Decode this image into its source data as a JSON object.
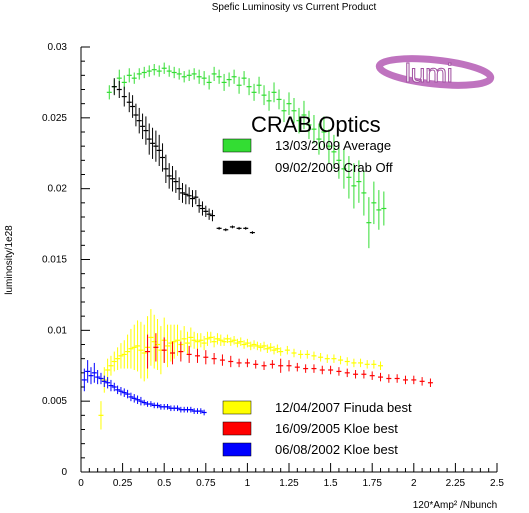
{
  "chart_data": {
    "type": "scatter",
    "title": "Spefic Luminosity vs Current Product",
    "xlabel": "120*Amp² /Nbunch",
    "ylabel": "luminosity/1e28",
    "xlim": [
      0,
      2.5
    ],
    "ylim": [
      0,
      0.03
    ],
    "x_ticks": [
      "0",
      "0.25",
      "0.5",
      "0.75",
      "1",
      "1.25",
      "1.5",
      "1.75",
      "2",
      "2.25",
      "2.5"
    ],
    "y_ticks": [
      "0",
      "0.005",
      "0.01",
      "0.015",
      "0.02",
      "0.025",
      "0.03"
    ],
    "annotation": "CRAB Optics",
    "logo_text": "lumi",
    "grid": false,
    "legend_top": [
      {
        "label": "13/03/2009 Average",
        "color": "#33dd33"
      },
      {
        "label": "09/02/2009 Crab Off",
        "color": "#000000"
      }
    ],
    "legend_bottom": [
      {
        "label": "12/04/2007 Finuda best",
        "color": "#ffff00"
      },
      {
        "label": "16/09/2005 Kloe best",
        "color": "#ff0000"
      },
      {
        "label": "06/08/2002 Kloe best",
        "color": "#0000ff"
      }
    ],
    "series": [
      {
        "name": "13/03/2009 Average",
        "color": "#33dd33",
        "x": [
          0.17,
          0.2,
          0.23,
          0.26,
          0.29,
          0.32,
          0.35,
          0.38,
          0.41,
          0.44,
          0.47,
          0.5,
          0.53,
          0.56,
          0.59,
          0.62,
          0.65,
          0.68,
          0.71,
          0.74,
          0.77,
          0.8,
          0.83,
          0.86,
          0.89,
          0.92,
          0.95,
          0.98,
          1.01,
          1.04,
          1.07,
          1.1,
          1.13,
          1.16,
          1.19,
          1.22,
          1.25,
          1.28,
          1.31,
          1.34,
          1.37,
          1.4,
          1.43,
          1.46,
          1.49,
          1.52,
          1.55,
          1.58,
          1.61,
          1.64,
          1.67,
          1.7,
          1.73,
          1.76,
          1.79,
          1.82
        ],
        "y": [
          0.0268,
          0.0272,
          0.0278,
          0.0275,
          0.028,
          0.0278,
          0.0281,
          0.0282,
          0.0283,
          0.0284,
          0.0283,
          0.0285,
          0.0283,
          0.0282,
          0.0281,
          0.0279,
          0.028,
          0.0281,
          0.0279,
          0.0278,
          0.0275,
          0.0281,
          0.0279,
          0.0275,
          0.0277,
          0.0279,
          0.0273,
          0.0278,
          0.0272,
          0.0268,
          0.0273,
          0.0266,
          0.0262,
          0.0268,
          0.0263,
          0.0255,
          0.026,
          0.0255,
          0.0248,
          0.0252,
          0.0245,
          0.0242,
          0.0235,
          0.024,
          0.023,
          0.0226,
          0.022,
          0.0214,
          0.0208,
          0.0202,
          0.0205,
          0.0197,
          0.0176,
          0.019,
          0.0185,
          0.0186
        ],
        "err": [
          0.0005,
          0.0005,
          0.0006,
          0.0005,
          0.0005,
          0.0004,
          0.0004,
          0.0004,
          0.0004,
          0.0004,
          0.0004,
          0.0004,
          0.0004,
          0.0004,
          0.0004,
          0.0004,
          0.0004,
          0.0004,
          0.0005,
          0.0005,
          0.0005,
          0.0005,
          0.0005,
          0.0006,
          0.0005,
          0.0005,
          0.0006,
          0.0005,
          0.0006,
          0.0006,
          0.0006,
          0.0007,
          0.0007,
          0.0007,
          0.0007,
          0.0008,
          0.0008,
          0.0009,
          0.0009,
          0.001,
          0.001,
          0.001,
          0.0011,
          0.0011,
          0.0012,
          0.0012,
          0.0013,
          0.0014,
          0.0015,
          0.0016,
          0.0015,
          0.0016,
          0.0018,
          0.0015,
          0.0014,
          0.0012
        ]
      },
      {
        "name": "09/02/2009 Crab Off",
        "color": "#000000",
        "x": [
          0.2,
          0.23,
          0.26,
          0.29,
          0.31,
          0.33,
          0.35,
          0.37,
          0.39,
          0.41,
          0.43,
          0.45,
          0.47,
          0.49,
          0.51,
          0.53,
          0.55,
          0.57,
          0.59,
          0.61,
          0.63,
          0.65,
          0.67,
          0.69,
          0.71,
          0.73,
          0.75,
          0.77,
          0.79,
          0.83,
          0.87,
          0.91,
          0.95,
          0.99,
          1.03
        ],
        "y": [
          0.0272,
          0.027,
          0.0265,
          0.0261,
          0.0258,
          0.0252,
          0.0248,
          0.0244,
          0.0241,
          0.0235,
          0.0232,
          0.023,
          0.0227,
          0.0222,
          0.0214,
          0.0209,
          0.0207,
          0.0205,
          0.02,
          0.0197,
          0.0196,
          0.0195,
          0.0193,
          0.0194,
          0.0188,
          0.0186,
          0.0184,
          0.0182,
          0.0181,
          0.0172,
          0.0171,
          0.0173,
          0.0172,
          0.0172,
          0.0169
        ],
        "err": [
          0.0006,
          0.0006,
          0.0007,
          0.0007,
          0.0008,
          0.0008,
          0.0009,
          0.0009,
          0.001,
          0.0011,
          0.0011,
          0.0011,
          0.0011,
          0.001,
          0.001,
          0.0009,
          0.0009,
          0.0008,
          0.0008,
          0.0007,
          0.0007,
          0.0006,
          0.0006,
          0.0005,
          0.0005,
          0.0005,
          0.0004,
          0.0004,
          0.0004,
          0.0001,
          0.0001,
          0.0001,
          0.0001,
          0.0001,
          0.0001
        ]
      },
      {
        "name": "12/04/2007 Finuda best",
        "color": "#ffff00",
        "x": [
          0.12,
          0.14,
          0.16,
          0.18,
          0.2,
          0.22,
          0.24,
          0.26,
          0.28,
          0.3,
          0.32,
          0.34,
          0.36,
          0.38,
          0.4,
          0.42,
          0.44,
          0.46,
          0.48,
          0.5,
          0.52,
          0.54,
          0.56,
          0.58,
          0.6,
          0.62,
          0.64,
          0.66,
          0.68,
          0.7,
          0.72,
          0.74,
          0.76,
          0.78,
          0.8,
          0.82,
          0.84,
          0.86,
          0.88,
          0.9,
          0.92,
          0.94,
          0.96,
          0.98,
          1.0,
          1.02,
          1.04,
          1.06,
          1.08,
          1.1,
          1.12,
          1.14,
          1.16,
          1.18,
          1.2,
          1.24,
          1.28,
          1.32,
          1.36,
          1.4,
          1.44,
          1.48,
          1.52,
          1.56,
          1.6,
          1.64,
          1.68,
          1.72,
          1.76,
          1.8
        ],
        "y": [
          0.004,
          0.0065,
          0.0072,
          0.0075,
          0.0078,
          0.008,
          0.0082,
          0.0083,
          0.0085,
          0.0087,
          0.0088,
          0.0089,
          0.0086,
          0.0084,
          0.0088,
          0.0095,
          0.0092,
          0.009,
          0.0086,
          0.0093,
          0.0089,
          0.0091,
          0.0092,
          0.0093,
          0.009,
          0.0094,
          0.0091,
          0.0095,
          0.0093,
          0.0092,
          0.0093,
          0.0091,
          0.0094,
          0.0095,
          0.0092,
          0.0094,
          0.0093,
          0.0092,
          0.0094,
          0.0092,
          0.0093,
          0.0091,
          0.0092,
          0.009,
          0.0091,
          0.0089,
          0.009,
          0.0089,
          0.0088,
          0.0089,
          0.0087,
          0.0088,
          0.0086,
          0.0087,
          0.0085,
          0.0086,
          0.0084,
          0.0083,
          0.0083,
          0.0082,
          0.0081,
          0.008,
          0.008,
          0.0079,
          0.0078,
          0.0077,
          0.0077,
          0.0076,
          0.0076,
          0.0075
        ],
        "err": [
          0.001,
          0.0009,
          0.0008,
          0.0007,
          0.0007,
          0.0008,
          0.0009,
          0.001,
          0.0012,
          0.0014,
          0.0016,
          0.0018,
          0.002,
          0.002,
          0.0022,
          0.002,
          0.0019,
          0.0018,
          0.0017,
          0.0016,
          0.0015,
          0.0013,
          0.0012,
          0.0011,
          0.001,
          0.0009,
          0.0008,
          0.0007,
          0.0006,
          0.0006,
          0.0005,
          0.0005,
          0.0005,
          0.0004,
          0.0004,
          0.0004,
          0.0004,
          0.0003,
          0.0003,
          0.0003,
          0.0003,
          0.0003,
          0.0003,
          0.0003,
          0.0003,
          0.0003,
          0.0003,
          0.0003,
          0.0003,
          0.0003,
          0.0003,
          0.0003,
          0.0003,
          0.0003,
          0.0003,
          0.0003,
          0.0003,
          0.0003,
          0.0003,
          0.0003,
          0.0003,
          0.0003,
          0.0003,
          0.0003,
          0.0003,
          0.0003,
          0.0003,
          0.0003,
          0.0003,
          0.0003
        ]
      },
      {
        "name": "16/09/2005 Kloe best",
        "color": "#ff0000",
        "x": [
          0.4,
          0.45,
          0.5,
          0.55,
          0.6,
          0.65,
          0.7,
          0.75,
          0.8,
          0.85,
          0.9,
          0.95,
          1.0,
          1.05,
          1.1,
          1.15,
          1.2,
          1.25,
          1.3,
          1.35,
          1.4,
          1.45,
          1.5,
          1.55,
          1.6,
          1.65,
          1.7,
          1.75,
          1.8,
          1.85,
          1.9,
          1.95,
          2.0,
          2.05,
          2.1
        ],
        "y": [
          0.0085,
          0.0088,
          0.0086,
          0.0084,
          0.0085,
          0.0083,
          0.0082,
          0.0081,
          0.008,
          0.0079,
          0.0078,
          0.0077,
          0.0077,
          0.0076,
          0.0075,
          0.0076,
          0.0075,
          0.0075,
          0.0074,
          0.0073,
          0.0073,
          0.0072,
          0.0072,
          0.0071,
          0.007,
          0.0069,
          0.0069,
          0.0068,
          0.0067,
          0.0066,
          0.0066,
          0.0065,
          0.0065,
          0.0064,
          0.0063
        ],
        "err": [
          0.0012,
          0.001,
          0.0009,
          0.0008,
          0.0007,
          0.0006,
          0.0005,
          0.0005,
          0.0004,
          0.0004,
          0.0004,
          0.0003,
          0.0003,
          0.0003,
          0.0003,
          0.0003,
          0.0005,
          0.0004,
          0.0003,
          0.0003,
          0.0003,
          0.0003,
          0.0003,
          0.0003,
          0.0003,
          0.0003,
          0.0003,
          0.0003,
          0.0003,
          0.0003,
          0.0003,
          0.0003,
          0.0003,
          0.0003,
          0.0003
        ]
      },
      {
        "name": "06/08/2002 Kloe best",
        "color": "#0000ff",
        "x": [
          0.02,
          0.04,
          0.06,
          0.08,
          0.1,
          0.12,
          0.14,
          0.16,
          0.18,
          0.2,
          0.22,
          0.24,
          0.26,
          0.28,
          0.3,
          0.32,
          0.34,
          0.36,
          0.38,
          0.4,
          0.42,
          0.44,
          0.46,
          0.48,
          0.5,
          0.52,
          0.54,
          0.56,
          0.58,
          0.6,
          0.62,
          0.64,
          0.66,
          0.68,
          0.7,
          0.72,
          0.74
        ],
        "y": [
          0.0065,
          0.0071,
          0.0068,
          0.007,
          0.0067,
          0.0066,
          0.0064,
          0.0063,
          0.0061,
          0.006,
          0.0058,
          0.0057,
          0.0056,
          0.0055,
          0.0053,
          0.0052,
          0.0051,
          0.005,
          0.0049,
          0.0048,
          0.0048,
          0.0047,
          0.0047,
          0.0046,
          0.0046,
          0.0046,
          0.0045,
          0.0045,
          0.0045,
          0.0044,
          0.0044,
          0.0044,
          0.0044,
          0.0043,
          0.0043,
          0.0043,
          0.0042
        ],
        "err": [
          0.0008,
          0.0008,
          0.0006,
          0.0007,
          0.0005,
          0.0004,
          0.0004,
          0.0004,
          0.0004,
          0.0003,
          0.0003,
          0.0003,
          0.0003,
          0.0003,
          0.0003,
          0.0003,
          0.0003,
          0.0003,
          0.0002,
          0.0002,
          0.0002,
          0.0002,
          0.0002,
          0.0002,
          0.0002,
          0.0002,
          0.0002,
          0.0002,
          0.0002,
          0.0002,
          0.0002,
          0.0002,
          0.0002,
          0.0002,
          0.0002,
          0.0002,
          0.0002
        ]
      }
    ]
  }
}
